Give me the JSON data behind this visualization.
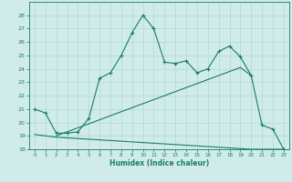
{
  "line1_x": [
    0,
    1,
    2,
    3,
    4,
    5,
    6,
    7,
    8,
    9,
    10,
    11,
    12,
    13,
    14,
    15,
    16,
    17,
    18,
    19,
    20,
    21,
    22,
    23
  ],
  "line1_y": [
    21.0,
    20.7,
    19.2,
    19.2,
    19.3,
    20.3,
    23.3,
    23.7,
    25.0,
    26.7,
    28.0,
    27.0,
    24.5,
    24.4,
    24.6,
    23.7,
    24.0,
    25.3,
    25.7,
    24.9,
    23.5,
    19.8,
    19.5,
    18.0
  ],
  "line2_x": [
    2,
    3,
    4,
    5,
    6,
    7,
    8,
    9,
    10,
    11,
    12,
    13,
    14,
    15,
    16,
    17,
    18,
    19,
    20
  ],
  "line2_y": [
    19.0,
    19.3,
    19.6,
    19.9,
    20.2,
    20.5,
    20.8,
    21.1,
    21.4,
    21.7,
    22.0,
    22.3,
    22.6,
    22.9,
    23.2,
    23.5,
    23.8,
    24.1,
    23.5
  ],
  "line3_x": [
    0,
    1,
    2,
    3,
    4,
    5,
    6,
    7,
    8,
    9,
    10,
    11,
    12,
    13,
    14,
    15,
    16,
    17,
    18,
    19,
    20,
    21,
    22,
    23
  ],
  "line3_y": [
    19.1,
    19.0,
    18.9,
    18.85,
    18.8,
    18.75,
    18.7,
    18.65,
    18.6,
    18.55,
    18.5,
    18.45,
    18.4,
    18.35,
    18.3,
    18.25,
    18.2,
    18.15,
    18.1,
    18.05,
    18.0,
    18.0,
    18.0,
    18.0
  ],
  "line_color": "#1a7a6a",
  "bg_color": "#d0ecea",
  "grid_color": "#b0d8d5",
  "xlabel": "Humidex (Indice chaleur)",
  "ylim": [
    18,
    29
  ],
  "xlim": [
    -0.5,
    23.5
  ],
  "yticks": [
    18,
    19,
    20,
    21,
    22,
    23,
    24,
    25,
    26,
    27,
    28
  ],
  "xticks": [
    0,
    1,
    2,
    3,
    4,
    5,
    6,
    7,
    8,
    9,
    10,
    11,
    12,
    13,
    14,
    15,
    16,
    17,
    18,
    19,
    20,
    21,
    22,
    23
  ]
}
